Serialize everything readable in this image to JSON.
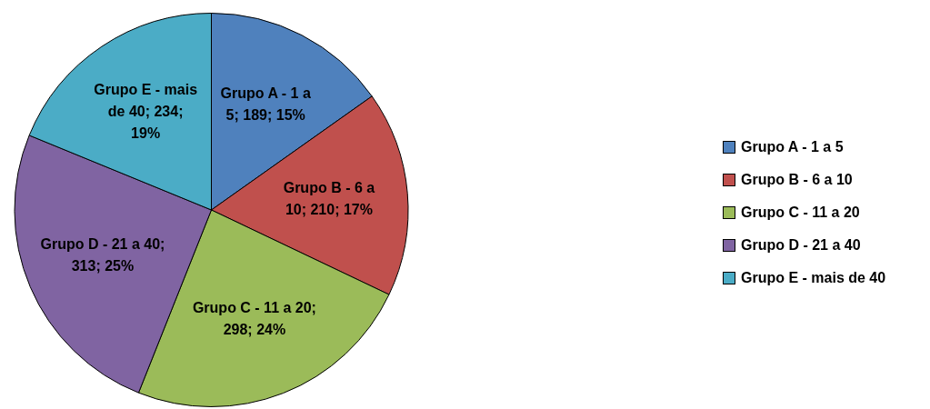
{
  "chart_data": {
    "type": "pie",
    "categories": [
      "Grupo A - 1 a 5",
      "Grupo B - 6 a 10",
      "Grupo C - 11 a 20",
      "Grupo D - 21 a 40",
      "Grupo E - mais de 40"
    ],
    "values": [
      189,
      210,
      298,
      313,
      234
    ],
    "colors": [
      "#4f81bd",
      "#c0504d",
      "#9bbb59",
      "#8064a2",
      "#4bacc6"
    ],
    "value_labels": [
      "Grupo A - 1 a 5; 189; 15%",
      "Grupo B - 6 a 10; 210; 17%",
      "Grupo C - 11 a 20; 298; 24%",
      "Grupo D - 21 a 40; 313; 25%",
      "Grupo E - mais de 40; 234; 19%"
    ],
    "legend": "right"
  }
}
